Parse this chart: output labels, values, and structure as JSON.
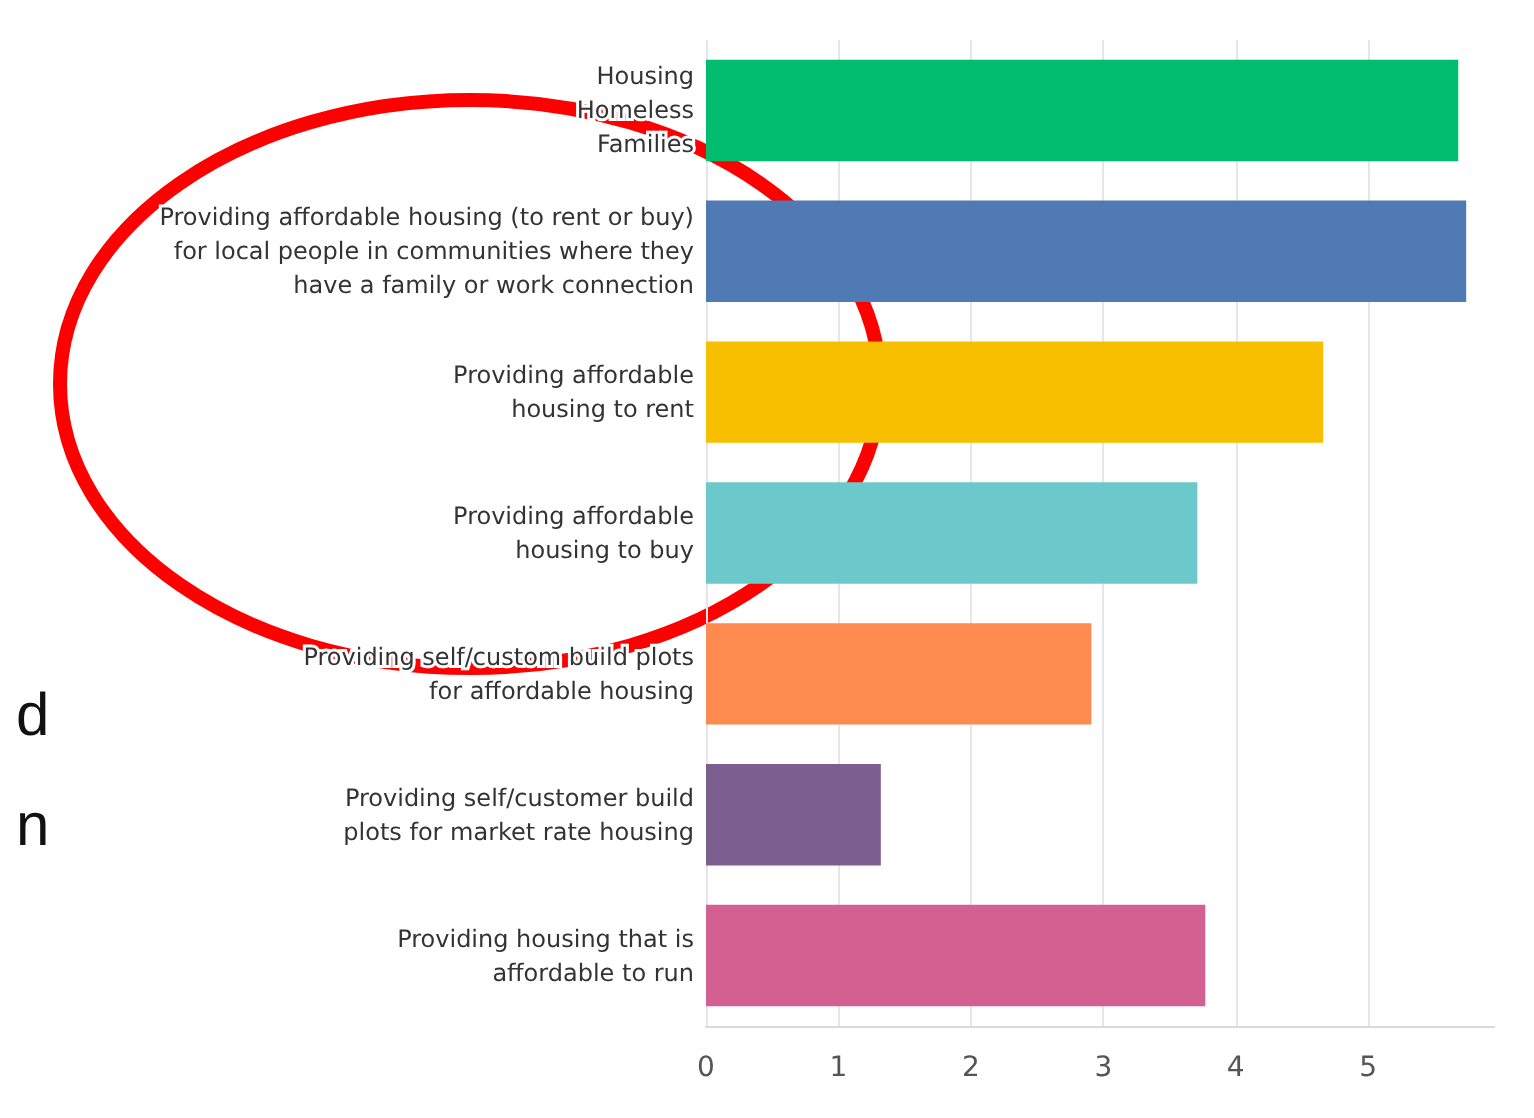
{
  "chart_data": {
    "type": "bar",
    "orientation": "horizontal",
    "categories": [
      "Housing\nHomeless\nFamilies",
      "Providing affordable housing (to rent or buy)\nfor local people in communities where they\nhave a family or work connection",
      "Providing affordable\nhousing to rent",
      "Providing affordable\nhousing to buy",
      "Providing self/custom build plots\nfor affordable housing",
      "Providing self/customer build\nplots for market rate housing",
      "Providing housing that is\naffordable to run"
    ],
    "values": [
      5.68,
      5.74,
      4.66,
      3.71,
      2.91,
      1.32,
      3.77
    ],
    "colors": [
      "#02bd6e",
      "#4f7ab3",
      "#f7bf00",
      "#6cc9cb",
      "#fd8a4f",
      "#7d5e91",
      "#d45f91"
    ],
    "xlim": [
      0,
      5.95
    ],
    "xticks": [
      0,
      1,
      2,
      3,
      4,
      5
    ],
    "grid": "x",
    "annotations": [
      "d",
      "n"
    ]
  }
}
